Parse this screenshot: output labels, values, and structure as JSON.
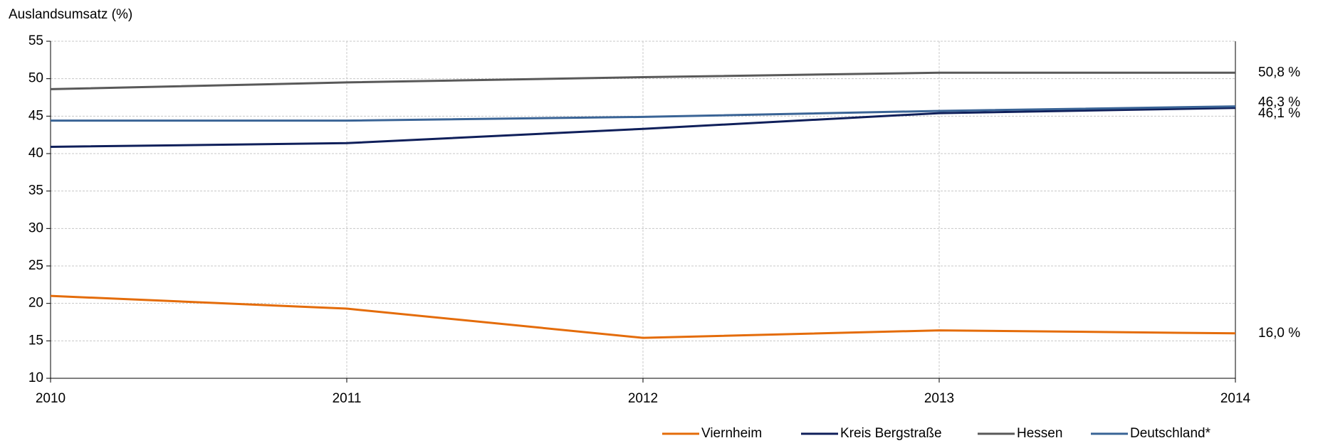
{
  "chart_data": {
    "type": "line",
    "y_axis_label": "Auslandsumsatz (%)",
    "x": [
      2010,
      2011,
      2012,
      2013,
      2014
    ],
    "xlim": [
      2010,
      2014
    ],
    "xticks": [
      2010,
      2011,
      2012,
      2013,
      2014
    ],
    "ylim": [
      10,
      55
    ],
    "yticks": [
      10,
      15,
      20,
      25,
      30,
      35,
      40,
      45,
      50,
      55
    ],
    "grid": true,
    "legend": "bottom-right",
    "series": [
      {
        "name": "Viernheim",
        "color": "#e46c0a",
        "values": [
          21.0,
          19.3,
          15.4,
          16.4,
          16.0
        ],
        "value_labels": [
          null,
          null,
          null,
          null,
          "16,0 %"
        ]
      },
      {
        "name": "Kreis Bergstraße",
        "color": "#0f1f5a",
        "values": [
          40.9,
          41.4,
          43.3,
          45.4,
          46.1
        ],
        "value_labels": [
          null,
          null,
          null,
          null,
          "46,1 %"
        ]
      },
      {
        "name": "Hessen",
        "color": "#595959",
        "values": [
          48.6,
          49.5,
          50.2,
          50.8,
          50.8
        ],
        "value_labels": [
          null,
          null,
          null,
          null,
          "50,8 %"
        ]
      },
      {
        "name": "Deutschland*",
        "color": "#3a6496",
        "values": [
          44.4,
          44.4,
          44.9,
          45.7,
          46.3
        ],
        "value_labels": [
          null,
          null,
          null,
          null,
          "46,3 %"
        ]
      }
    ]
  }
}
